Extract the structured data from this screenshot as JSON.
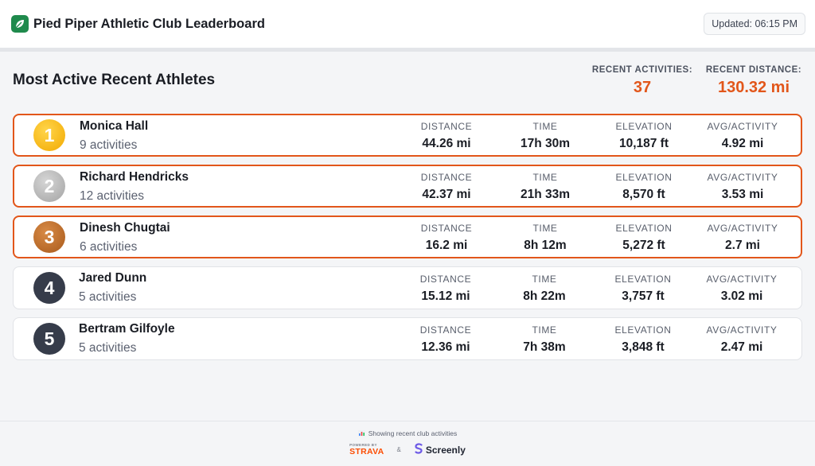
{
  "header": {
    "title": "Pied Piper Athletic Club Leaderboard",
    "logo_icon": "leaf-icon",
    "updated": "Updated: 06:15 PM"
  },
  "summary": {
    "section_title": "Most Active Recent Athletes",
    "activities_label": "RECENT ACTIVITIES:",
    "activities_value": "37",
    "distance_label": "RECENT DISTANCE:",
    "distance_value": "130.32 mi",
    "accent_color": "#e2561a"
  },
  "labels": {
    "distance": "DISTANCE",
    "time": "TIME",
    "elevation": "ELEVATION",
    "avg": "AVG/ACTIVITY"
  },
  "athletes": [
    {
      "rank": "1",
      "name": "Monica Hall",
      "activities": "9 activities",
      "distance": "44.26 mi",
      "time": "17h 30m",
      "elevation": "10,187 ft",
      "avg": "4.92 mi",
      "medal": "gold"
    },
    {
      "rank": "2",
      "name": "Richard Hendricks",
      "activities": "12 activities",
      "distance": "42.37 mi",
      "time": "21h 33m",
      "elevation": "8,570 ft",
      "avg": "3.53 mi",
      "medal": "silver"
    },
    {
      "rank": "3",
      "name": "Dinesh Chugtai",
      "activities": "6 activities",
      "distance": "16.2 mi",
      "time": "8h 12m",
      "elevation": "5,272 ft",
      "avg": "2.7 mi",
      "medal": "bronze"
    },
    {
      "rank": "4",
      "name": "Jared Dunn",
      "activities": "5 activities",
      "distance": "15.12 mi",
      "time": "8h 22m",
      "elevation": "3,757 ft",
      "avg": "3.02 mi",
      "medal": "none"
    },
    {
      "rank": "5",
      "name": "Bertram Gilfoyle",
      "activities": "5 activities",
      "distance": "12.36 mi",
      "time": "7h 38m",
      "elevation": "3,848 ft",
      "avg": "2.47 mi",
      "medal": "none"
    }
  ],
  "footer": {
    "note": "Showing recent club activities",
    "note_icon": "bar-chart-icon",
    "powered_by": "POWERED BY",
    "strava": "STRAVA",
    "amp": "&",
    "screenly": "Screenly",
    "screenly_icon": "screenly-logo-icon"
  }
}
